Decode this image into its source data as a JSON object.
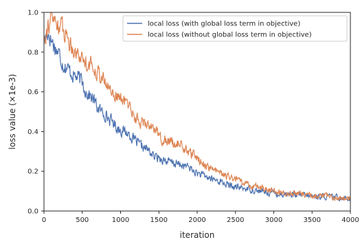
{
  "chart_data": {
    "type": "line",
    "xlabel": "iteration",
    "ylabel": "loss value (×1e-3)",
    "xlim": [
      0,
      4000
    ],
    "ylim": [
      0.0,
      1.0
    ],
    "xticks": [
      0,
      500,
      1000,
      1500,
      2000,
      2500,
      3000,
      3500,
      4000
    ],
    "xtick_labels": [
      "0",
      "500",
      "1000",
      "1500",
      "2000",
      "2500",
      "3000",
      "3500",
      "4000"
    ],
    "yticks": [
      0.0,
      0.2,
      0.4,
      0.6,
      0.8,
      1.0
    ],
    "ytick_labels": [
      "0.0",
      "0.2",
      "0.4",
      "0.6",
      "0.8",
      "1.0"
    ],
    "grid": false,
    "legend_position": "top-right",
    "series": [
      {
        "name": "local loss (with global loss term in objective)",
        "color": "#4c72b0",
        "x": [
          0,
          50,
          100,
          150,
          200,
          250,
          300,
          350,
          400,
          450,
          500,
          550,
          600,
          650,
          700,
          750,
          800,
          850,
          900,
          950,
          1000,
          1050,
          1100,
          1150,
          1200,
          1250,
          1300,
          1350,
          1400,
          1450,
          1500,
          1550,
          1600,
          1650,
          1700,
          1750,
          1800,
          1850,
          1900,
          1950,
          2000,
          2100,
          2200,
          2300,
          2400,
          2500,
          2600,
          2700,
          2800,
          2900,
          3000,
          3100,
          3200,
          3300,
          3400,
          3500,
          3600,
          3700,
          3800,
          3900,
          4000
        ],
        "y": [
          0.86,
          0.9,
          0.86,
          0.82,
          0.79,
          0.74,
          0.72,
          0.7,
          0.68,
          0.67,
          0.65,
          0.6,
          0.58,
          0.56,
          0.52,
          0.5,
          0.49,
          0.46,
          0.45,
          0.42,
          0.41,
          0.4,
          0.39,
          0.37,
          0.35,
          0.33,
          0.32,
          0.31,
          0.29,
          0.27,
          0.27,
          0.26,
          0.25,
          0.245,
          0.24,
          0.235,
          0.23,
          0.225,
          0.22,
          0.2,
          0.19,
          0.175,
          0.16,
          0.15,
          0.13,
          0.12,
          0.115,
          0.11,
          0.1,
          0.095,
          0.09,
          0.085,
          0.085,
          0.08,
          0.078,
          0.075,
          0.073,
          0.072,
          0.07,
          0.068,
          0.066
        ]
      },
      {
        "name": "local loss (without global loss term in objective)",
        "color": "#dd8452",
        "x": [
          0,
          50,
          100,
          150,
          200,
          250,
          300,
          350,
          400,
          450,
          500,
          550,
          600,
          650,
          700,
          750,
          800,
          850,
          900,
          950,
          1000,
          1050,
          1100,
          1150,
          1200,
          1250,
          1300,
          1350,
          1400,
          1450,
          1500,
          1550,
          1600,
          1650,
          1700,
          1750,
          1800,
          1850,
          1900,
          1950,
          2000,
          2100,
          2200,
          2300,
          2400,
          2500,
          2600,
          2700,
          2800,
          2900,
          3000,
          3100,
          3200,
          3300,
          3400,
          3500,
          3600,
          3700,
          3800,
          3900,
          4000
        ],
        "y": [
          0.88,
          0.93,
          0.97,
          0.95,
          0.94,
          0.92,
          0.88,
          0.84,
          0.81,
          0.79,
          0.77,
          0.75,
          0.74,
          0.72,
          0.7,
          0.68,
          0.64,
          0.62,
          0.6,
          0.58,
          0.57,
          0.55,
          0.54,
          0.5,
          0.47,
          0.45,
          0.44,
          0.44,
          0.43,
          0.42,
          0.38,
          0.36,
          0.35,
          0.35,
          0.34,
          0.34,
          0.33,
          0.31,
          0.29,
          0.28,
          0.27,
          0.23,
          0.21,
          0.19,
          0.17,
          0.16,
          0.14,
          0.13,
          0.12,
          0.11,
          0.1,
          0.095,
          0.09,
          0.088,
          0.085,
          0.08,
          0.076,
          0.073,
          0.07,
          0.067,
          0.065
        ]
      }
    ]
  }
}
